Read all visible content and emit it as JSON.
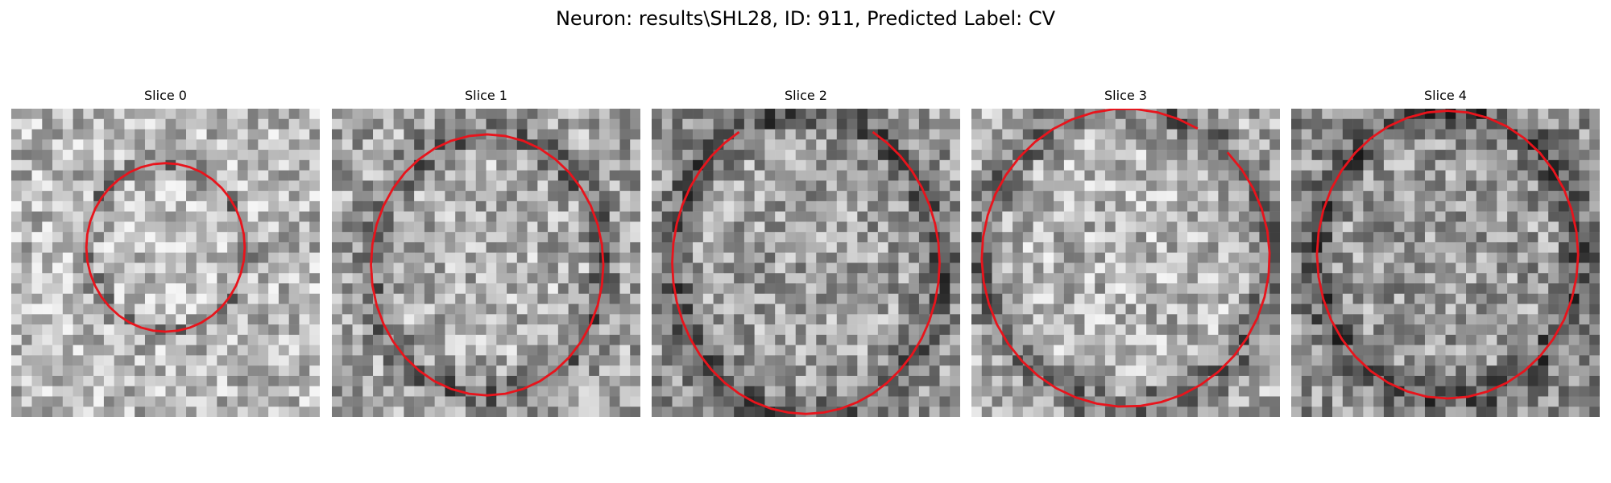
{
  "figure": {
    "title": "Neuron: results\\SHL28, ID: 911, Predicted Label: CV",
    "contour_color": "#e8141c",
    "panels": [
      {
        "title": "Slice 0",
        "seed": 11,
        "background_gray": 185,
        "contour": {
          "cx": 15,
          "cy": 13.5,
          "rx": 7.7,
          "ry": 8.2,
          "arc": "full"
        }
      },
      {
        "title": "Slice 1",
        "seed": 23,
        "background_gray": 165,
        "contour": {
          "cx": 15.1,
          "cy": 15.2,
          "rx": 11.3,
          "ry": 12.7,
          "arc": "full"
        }
      },
      {
        "title": "Slice 2",
        "seed": 37,
        "background_gray": 150,
        "contour": {
          "cx": 15,
          "cy": 15,
          "rx": 13,
          "ry": 14.7,
          "arc": "open-sides"
        }
      },
      {
        "title": "Slice 3",
        "seed": 41,
        "background_gray": 170,
        "contour": {
          "cx": 15,
          "cy": 14.5,
          "rx": 14,
          "ry": 14.5,
          "arc": "open-bottom"
        }
      },
      {
        "title": "Slice 4",
        "seed": 59,
        "background_gray": 145,
        "contour": {
          "cx": 15.2,
          "cy": 14.2,
          "rx": 12.7,
          "ry": 14,
          "arc": "full"
        }
      }
    ]
  }
}
